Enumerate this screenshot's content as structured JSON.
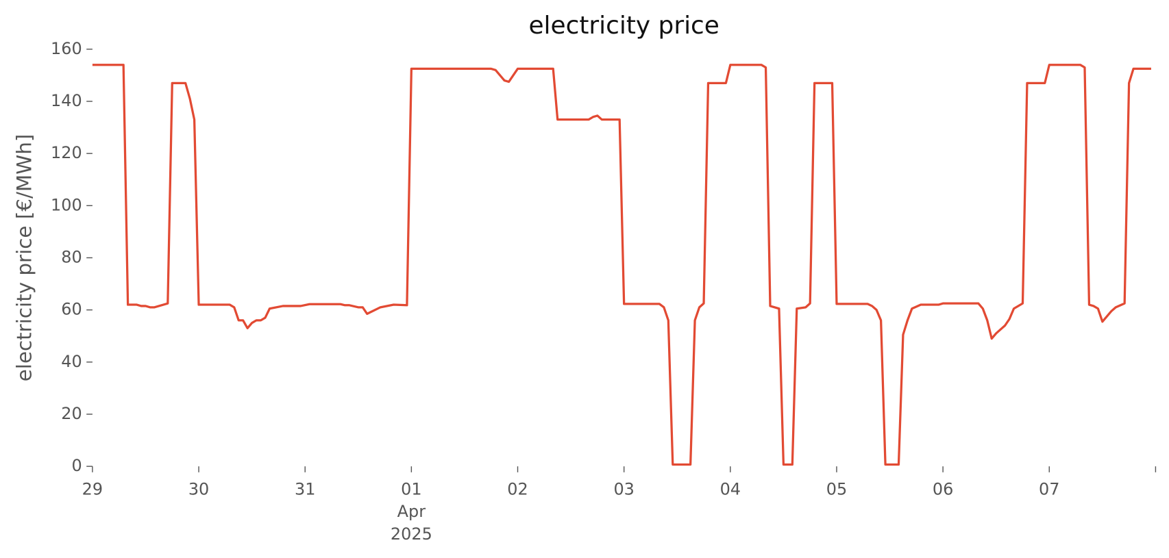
{
  "chart_data": {
    "type": "line",
    "title": "electricity price",
    "y_label": "electricity price [€/MWh]",
    "x": [
      "2025-03-29 00:00",
      "2025-03-29 07:00",
      "2025-03-29 08:00",
      "2025-03-29 10:00",
      "2025-03-29 11:00",
      "2025-03-29 12:00",
      "2025-03-29 13:00",
      "2025-03-29 14:00",
      "2025-03-29 17:00",
      "2025-03-29 18:00",
      "2025-03-29 21:00",
      "2025-03-29 22:00",
      "2025-03-29 23:00",
      "2025-03-30 00:00",
      "2025-03-30 07:00",
      "2025-03-30 08:00",
      "2025-03-30 09:00",
      "2025-03-30 10:00",
      "2025-03-30 11:00",
      "2025-03-30 12:00",
      "2025-03-30 13:00",
      "2025-03-30 14:00",
      "2025-03-30 15:00",
      "2025-03-30 16:00",
      "2025-03-30 19:00",
      "2025-03-30 23:00",
      "2025-03-31 01:00",
      "2025-03-31 08:00",
      "2025-03-31 09:00",
      "2025-03-31 10:00",
      "2025-03-31 12:00",
      "2025-03-31 13:00",
      "2025-03-31 14:00",
      "2025-03-31 17:00",
      "2025-03-31 20:00",
      "2025-03-31 23:00",
      "2025-04-01 00:00",
      "2025-04-01 18:00",
      "2025-04-01 19:00",
      "2025-04-01 20:00",
      "2025-04-01 21:00",
      "2025-04-01 22:00",
      "2025-04-01 23:00",
      "2025-04-02 00:00",
      "2025-04-02 08:00",
      "2025-04-02 09:00",
      "2025-04-02 16:00",
      "2025-04-02 17:00",
      "2025-04-02 18:00",
      "2025-04-02 19:00",
      "2025-04-02 23:00",
      "2025-04-03 00:00",
      "2025-04-03 08:00",
      "2025-04-03 09:00",
      "2025-04-03 10:00",
      "2025-04-03 11:00",
      "2025-04-03 15:00",
      "2025-04-03 16:00",
      "2025-04-03 17:00",
      "2025-04-03 18:00",
      "2025-04-03 19:00",
      "2025-04-03 23:00",
      "2025-04-04 00:00",
      "2025-04-04 07:00",
      "2025-04-04 08:00",
      "2025-04-04 09:00",
      "2025-04-04 11:00",
      "2025-04-04 12:00",
      "2025-04-04 14:00",
      "2025-04-04 15:00",
      "2025-04-04 17:00",
      "2025-04-04 18:00",
      "2025-04-04 19:00",
      "2025-04-04 23:00",
      "2025-04-05 00:00",
      "2025-04-05 07:00",
      "2025-04-05 08:00",
      "2025-04-05 09:00",
      "2025-04-05 10:00",
      "2025-04-05 11:00",
      "2025-04-05 14:00",
      "2025-04-05 15:00",
      "2025-04-05 16:00",
      "2025-04-05 17:00",
      "2025-04-05 19:00",
      "2025-04-05 23:00",
      "2025-04-06 00:00",
      "2025-04-06 08:00",
      "2025-04-06 09:00",
      "2025-04-06 10:00",
      "2025-04-06 11:00",
      "2025-04-06 12:00",
      "2025-04-06 13:00",
      "2025-04-06 14:00",
      "2025-04-06 15:00",
      "2025-04-06 16:00",
      "2025-04-06 18:00",
      "2025-04-06 19:00",
      "2025-04-06 23:00",
      "2025-04-07 00:00",
      "2025-04-07 07:00",
      "2025-04-07 08:00",
      "2025-04-07 09:00",
      "2025-04-07 10:00",
      "2025-04-07 11:00",
      "2025-04-07 12:00",
      "2025-04-07 13:00",
      "2025-04-07 14:00",
      "2025-04-07 15:00",
      "2025-04-07 17:00",
      "2025-04-07 18:00",
      "2025-04-07 19:00",
      "2025-04-07 23:00"
    ],
    "series": [
      {
        "name": "electricity price",
        "color": "#e24a33",
        "values": [
          154,
          154,
          62,
          62,
          61.5,
          61.5,
          61,
          61,
          62.5,
          147,
          147,
          141,
          133,
          62,
          62,
          61,
          56,
          56,
          53,
          55,
          56,
          56,
          57,
          60.5,
          61.5,
          61.5,
          62.2,
          62.2,
          61.8,
          61.8,
          61,
          61,
          58.5,
          61,
          62,
          61.8,
          152.5,
          152.5,
          152,
          150,
          148,
          147.5,
          150,
          152.5,
          152.5,
          133,
          133,
          134,
          134.5,
          133,
          133,
          62.3,
          62.3,
          61,
          56,
          0.7,
          0.7,
          56,
          61,
          62.5,
          147,
          147,
          154,
          154,
          153,
          61.5,
          60.5,
          0.7,
          0.7,
          60.5,
          61,
          62.5,
          147,
          147,
          62.3,
          62.3,
          61.5,
          60,
          56,
          0.7,
          0.7,
          50.5,
          56,
          60.5,
          62,
          62,
          62.5,
          62.5,
          60.5,
          56,
          49,
          51,
          52.5,
          54,
          56.5,
          60.5,
          62.5,
          147,
          147,
          154,
          154,
          153,
          62,
          61.5,
          60.5,
          55.5,
          57.5,
          59.5,
          61,
          62.5,
          147,
          152.5,
          152.5
        ]
      }
    ],
    "xlim": [
      "2025-03-29 00:00",
      "2025-04-08 00:00"
    ],
    "xticks": [
      {
        "value": "2025-03-29",
        "label": "29"
      },
      {
        "value": "2025-03-30",
        "label": "30"
      },
      {
        "value": "2025-03-31",
        "label": "31"
      },
      {
        "value": "2025-04-01",
        "label": "01\nApr\n2025"
      },
      {
        "value": "2025-04-02",
        "label": "02"
      },
      {
        "value": "2025-04-03",
        "label": "03"
      },
      {
        "value": "2025-04-04",
        "label": "04"
      },
      {
        "value": "2025-04-05",
        "label": "05"
      },
      {
        "value": "2025-04-06",
        "label": "06"
      },
      {
        "value": "2025-04-07",
        "label": "07"
      }
    ],
    "ylim": [
      0,
      160
    ],
    "yticks": [
      0,
      20,
      40,
      60,
      80,
      100,
      120,
      140,
      160
    ],
    "grid": false
  }
}
